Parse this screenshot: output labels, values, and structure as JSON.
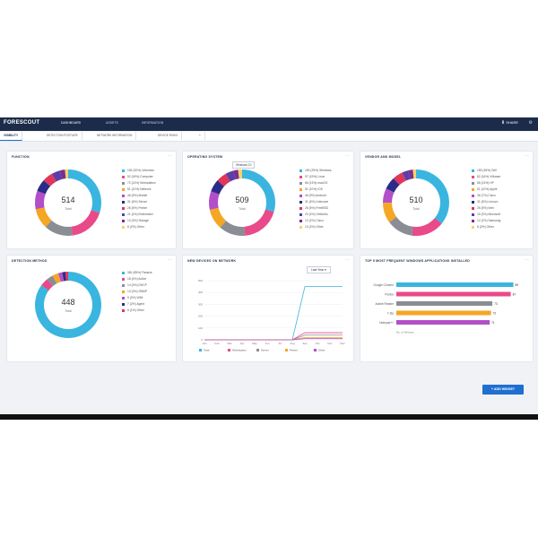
{
  "app": {
    "logo": "FORESCOUT",
    "nav": [
      "DASHBOARD",
      "ASSETS",
      "INFORMATION"
    ],
    "share_label": "SHARE",
    "tabs": [
      "VISIBILITY",
      "DETECTION POSTURE",
      "NETWORK INFORMATION",
      "DEVICE RISKS",
      "+"
    ]
  },
  "cards": {
    "function": {
      "title": "FUNCTION",
      "total": "514",
      "total_label": "Total",
      "legend": [
        "Unknown",
        "Computer",
        "Workstation",
        "Network",
        "Mobile",
        "Server",
        "Printer",
        "Embedded",
        "Storage",
        "Other"
      ],
      "colors": [
        "#3ab5e0",
        "#e84a8a",
        "#8a8d94",
        "#f5a623",
        "#b24fc9",
        "#2b2b8a",
        "#e0365a",
        "#5a3fa8",
        "#7a2f8e",
        "#f7d36a"
      ]
    },
    "operating_system": {
      "title": "OPERATING SYSTEM",
      "total": "509",
      "total_label": "Total",
      "tooltip": "Windows 10",
      "legend": [
        "Windows",
        "Linux",
        "macOS",
        "iOS",
        "Android",
        "Unknown",
        "FreeBSD",
        "VxWorks",
        "Cisco",
        "Other"
      ],
      "colors": [
        "#3ab5e0",
        "#e84a8a",
        "#8a8d94",
        "#f5a623",
        "#b24fc9",
        "#2b2b8a",
        "#e0365a",
        "#5a3fa8",
        "#7a2f8e",
        "#f7d36a"
      ]
    },
    "vendor_model": {
      "title": "VENDOR AND MODEL",
      "total": "510",
      "total_label": "Total",
      "legend": [
        "Dell",
        "VMware",
        "HP",
        "Apple",
        "Cisco",
        "Lenovo",
        "Intel",
        "Microsoft",
        "Samsung",
        "Other"
      ],
      "colors": [
        "#3ab5e0",
        "#e84a8a",
        "#8a8d94",
        "#f5a623",
        "#b24fc9",
        "#2b2b8a",
        "#e0365a",
        "#5a3fa8",
        "#7a2f8e",
        "#f7d36a"
      ]
    },
    "detection_method": {
      "title": "DETECTION METHOD",
      "total": "448",
      "total_label": "Total",
      "legend": [
        "Passive",
        "Active",
        "DHCP",
        "SNMP",
        "WMI",
        "Agent",
        "Other"
      ],
      "colors": [
        "#3ab5e0",
        "#e84a8a",
        "#8a8d94",
        "#f5a623",
        "#b24fc9",
        "#2b2b8a",
        "#e0365a"
      ]
    },
    "new_devices": {
      "title": "NEW DEVICES ON NETWORK",
      "select": "Last Year",
      "legend": [
        "Total",
        "Workstation",
        "Server",
        "Printer",
        "Other"
      ],
      "colors": [
        "#3ab5e0",
        "#e84a8a",
        "#8a8d94",
        "#f5a623",
        "#b24fc9"
      ]
    },
    "top_apps": {
      "title": "TOP 5 MOST FREQUENT WINDOWS APPLICATIONS INSTALLED",
      "footer": "No. of Devices",
      "colors": [
        "#3ab5e0",
        "#e84a8a",
        "#8a8d94",
        "#f5a623",
        "#b24fc9"
      ]
    }
  },
  "add_widget_label": "ADD WIDGET",
  "chart_data": [
    {
      "type": "pie",
      "title": "FUNCTION",
      "categories": [
        "Unknown",
        "Computer",
        "Workstation",
        "Network",
        "Mobile",
        "Server",
        "Printer",
        "Embedded",
        "Storage",
        "Other"
      ],
      "values": [
        154,
        92,
        72,
        51,
        46,
        31,
        26,
        21,
        13,
        8
      ]
    },
    {
      "type": "pie",
      "title": "OPERATING SYSTEM",
      "categories": [
        "Windows",
        "Linux",
        "macOS",
        "iOS",
        "Android",
        "Unknown",
        "FreeBSD",
        "VxWorks",
        "Cisco",
        "Other"
      ],
      "values": [
        150,
        97,
        66,
        51,
        46,
        31,
        26,
        20,
        12,
        10
      ]
    },
    {
      "type": "pie",
      "title": "VENDOR AND MODEL",
      "categories": [
        "Dell",
        "VMware",
        "HP",
        "Apple",
        "Cisco",
        "Lenovo",
        "Intel",
        "Microsoft",
        "Samsung",
        "Other"
      ],
      "values": [
        183,
        82,
        66,
        51,
        36,
        31,
        26,
        15,
        12,
        8
      ]
    },
    {
      "type": "pie",
      "title": "DETECTION METHOD",
      "categories": [
        "Passive",
        "Active",
        "DHCP",
        "SNMP",
        "WMI",
        "Agent",
        "Other"
      ],
      "values": [
        381,
        18,
        14,
        13,
        9,
        7,
        6
      ]
    },
    {
      "type": "line",
      "title": "NEW DEVICES ON NETWORK",
      "x": [
        "Jan",
        "Feb",
        "Mar",
        "Apr",
        "May",
        "Jun",
        "Jul",
        "Aug",
        "Sep",
        "Oct",
        "Nov",
        "Dec"
      ],
      "ylim": [
        0,
        500
      ],
      "yticks": [
        0,
        100,
        200,
        300,
        400,
        500
      ],
      "series": [
        {
          "name": "Total",
          "values": [
            0,
            0,
            0,
            0,
            0,
            0,
            0,
            0,
            450,
            450,
            450,
            450
          ]
        },
        {
          "name": "Workstation",
          "values": [
            0,
            0,
            0,
            0,
            0,
            0,
            0,
            0,
            60,
            60,
            60,
            60
          ]
        },
        {
          "name": "Server",
          "values": [
            0,
            0,
            0,
            0,
            0,
            0,
            0,
            0,
            40,
            40,
            40,
            40
          ]
        },
        {
          "name": "Printer",
          "values": [
            0,
            0,
            0,
            0,
            0,
            0,
            0,
            0,
            20,
            20,
            20,
            20
          ]
        },
        {
          "name": "Other",
          "values": [
            0,
            0,
            0,
            0,
            0,
            0,
            0,
            0,
            10,
            10,
            10,
            10
          ]
        }
      ]
    },
    {
      "type": "bar",
      "orientation": "horizontal",
      "title": "TOP 5 MOST FREQUENT WINDOWS APPLICATIONS INSTALLED",
      "categories": [
        "Google Chrome",
        "Firefox",
        "Adobe Reader",
        "7-Zip",
        "Notepad++"
      ],
      "values": [
        89,
        87,
        73,
        72,
        71
      ],
      "xlabel": "No. of Devices",
      "xlim": [
        0,
        90
      ]
    }
  ]
}
